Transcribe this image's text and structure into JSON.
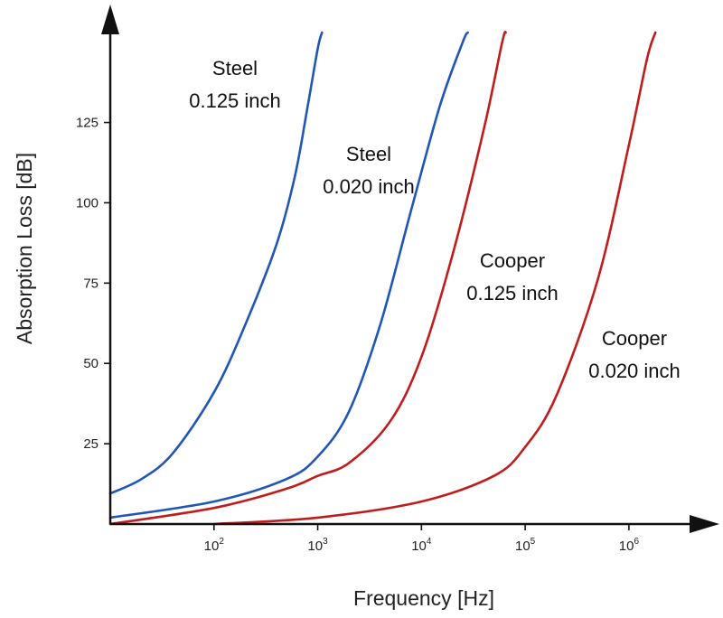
{
  "chart_data": {
    "type": "line",
    "xlabel": "Frequency [Hz]",
    "ylabel": "Absorption Loss [dB]",
    "x_scale": "log",
    "x_ticks": [
      {
        "base": "10",
        "exp": "2",
        "value": 100
      },
      {
        "base": "10",
        "exp": "3",
        "value": 1000
      },
      {
        "base": "10",
        "exp": "4",
        "value": 10000
      },
      {
        "base": "10",
        "exp": "5",
        "value": 100000
      },
      {
        "base": "10",
        "exp": "6",
        "value": 1000000
      }
    ],
    "y_ticks": [
      {
        "label": "25",
        "value": 25
      },
      {
        "label": "50",
        "value": 50
      },
      {
        "label": "75",
        "value": 75
      },
      {
        "label": "100",
        "value": 100
      },
      {
        "label": "125",
        "value": 125
      }
    ],
    "xlim": [
      10,
      4000000
    ],
    "ylim": [
      0,
      153
    ],
    "grid": false,
    "colors": {
      "steel": "#1f56b8",
      "copper": "#c01c1c",
      "axis": "#111111"
    },
    "series": [
      {
        "name": "Steel 0.125 inch",
        "line1": "Steel",
        "line2": "0.125 inch",
        "color": "#1f56b8",
        "x": [
          10,
          20,
          40,
          100,
          200,
          400,
          600,
          800,
          1000,
          1100
        ],
        "y": [
          9.5,
          14,
          22,
          41,
          62,
          87,
          108,
          130,
          148,
          153
        ]
      },
      {
        "name": "Steel 0.020 inch",
        "line1": "Steel",
        "line2": "0.020 inch",
        "color": "#1f56b8",
        "x": [
          10,
          100,
          500,
          1000,
          2000,
          4000,
          8000,
          15000,
          25000,
          28000
        ],
        "y": [
          2,
          7,
          14,
          21,
          35,
          62,
          98,
          130,
          150,
          153
        ]
      },
      {
        "name": "Cooper 0.125 inch",
        "line1": "Cooper",
        "line2": "0.125 inch",
        "color": "#c01c1c",
        "x": [
          10,
          100,
          500,
          1000,
          2000,
          5000,
          10000,
          20000,
          40000,
          60000,
          65000
        ],
        "y": [
          0,
          5,
          11,
          15,
          19,
          32,
          52,
          84,
          123,
          150,
          153
        ]
      },
      {
        "name": "Cooper 0.020 inch",
        "line1": "Cooper",
        "line2": "0.020 inch",
        "color": "#c01c1c",
        "x": [
          100,
          1000,
          10000,
          50000,
          100000,
          200000,
          500000,
          1000000,
          1500000,
          1800000
        ],
        "y": [
          0,
          2,
          7,
          15,
          24,
          40,
          76,
          118,
          145,
          153
        ]
      }
    ]
  }
}
